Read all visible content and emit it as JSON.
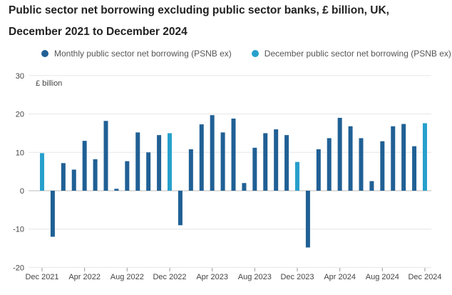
{
  "chart_data": {
    "type": "bar",
    "title": [
      "Public sector net borrowing excluding public sector banks, £ billion, UK,",
      "December 2021 to December 2024"
    ],
    "ylabel": "£ billion",
    "ylim": [
      -20,
      30
    ],
    "yticks": [
      30,
      20,
      10,
      0,
      -10,
      -20
    ],
    "xtick_labels": [
      "Dec 2021",
      "Apr 2022",
      "Aug 2022",
      "Dec 2022",
      "Apr 2023",
      "Aug 2023",
      "Dec 2023",
      "Apr 2024",
      "Aug 2024",
      "Dec 2024"
    ],
    "legend": [
      {
        "name": "Monthly public sector net borrowing (PSNB ex)",
        "color": "#206095"
      },
      {
        "name": "December public sector net borrowing (PSNB ex)",
        "color": "#27a0cc"
      }
    ],
    "categories": [
      "Dec 2021",
      "Jan 2022",
      "Feb 2022",
      "Mar 2022",
      "Apr 2022",
      "May 2022",
      "Jun 2022",
      "Jul 2022",
      "Aug 2022",
      "Sep 2022",
      "Oct 2022",
      "Nov 2022",
      "Dec 2022",
      "Jan 2023",
      "Feb 2023",
      "Mar 2023",
      "Apr 2023",
      "May 2023",
      "Jun 2023",
      "Jul 2023",
      "Aug 2023",
      "Sep 2023",
      "Oct 2023",
      "Nov 2023",
      "Dec 2023",
      "Jan 2024",
      "Feb 2024",
      "Mar 2024",
      "Apr 2024",
      "May 2024",
      "Jun 2024",
      "Jul 2024",
      "Aug 2024",
      "Sep 2024",
      "Oct 2024",
      "Nov 2024",
      "Dec 2024"
    ],
    "values": [
      9.8,
      -12,
      7.2,
      5.5,
      13,
      8.2,
      18.2,
      0.5,
      7.7,
      15.2,
      10,
      14.5,
      15,
      -9,
      10.8,
      17.3,
      19.7,
      15.2,
      18.8,
      2,
      11.2,
      15,
      16,
      14.5,
      7.5,
      -14.8,
      10.8,
      13.7,
      19,
      16.8,
      13.7,
      2.5,
      12.9,
      16.8,
      17.4,
      11.6,
      17.6
    ],
    "grid": true,
    "legend_placement": "top-left"
  }
}
